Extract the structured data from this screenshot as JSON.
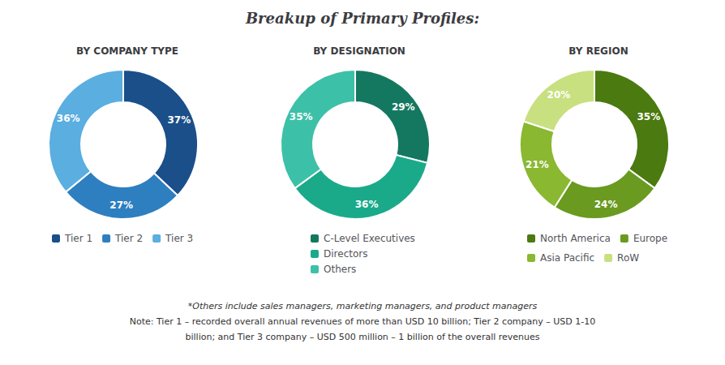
{
  "title": "Breakup of Primary Profiles:",
  "annotations": [
    "*Others include sales managers, marketing managers, and product managers",
    "Note: Tier 1 – recorded overall annual revenues of more than USD 10 billion; Tier 2 company – USD 1-10",
    "billion; and Tier 3 company – USD 500 million – 1 billion of the overall revenues"
  ],
  "chart_data": [
    {
      "type": "pie",
      "title": "BY COMPANY TYPE",
      "categories": [
        "Tier 1",
        "Tier 2",
        "Tier 3"
      ],
      "values": [
        37,
        27,
        36
      ],
      "value_labels": [
        "37%",
        "27%",
        "36%"
      ],
      "colors": [
        "#1a4f8a",
        "#2e7fc0",
        "#5aaee0"
      ],
      "data_labels": true,
      "legend": "bottom"
    },
    {
      "type": "pie",
      "title": "BY DESIGNATION",
      "categories": [
        "C-Level Executives",
        "Directors",
        "Others"
      ],
      "values": [
        29,
        36,
        35
      ],
      "value_labels": [
        "29%",
        "36%",
        "35%"
      ],
      "colors": [
        "#147860",
        "#1aaa8a",
        "#3dc0a8"
      ],
      "data_labels": true,
      "legend": "bottom"
    },
    {
      "type": "pie",
      "title": "BY REGION",
      "categories": [
        "North America",
        "Europe",
        "Asia Pacific",
        "RoW"
      ],
      "values": [
        35,
        24,
        21,
        20
      ],
      "value_labels": [
        "35%",
        "24%",
        "21%",
        "20%"
      ],
      "colors": [
        "#4a7a10",
        "#6a9a20",
        "#8ab830",
        "#c8e080"
      ],
      "data_labels": true,
      "legend": "bottom"
    }
  ]
}
